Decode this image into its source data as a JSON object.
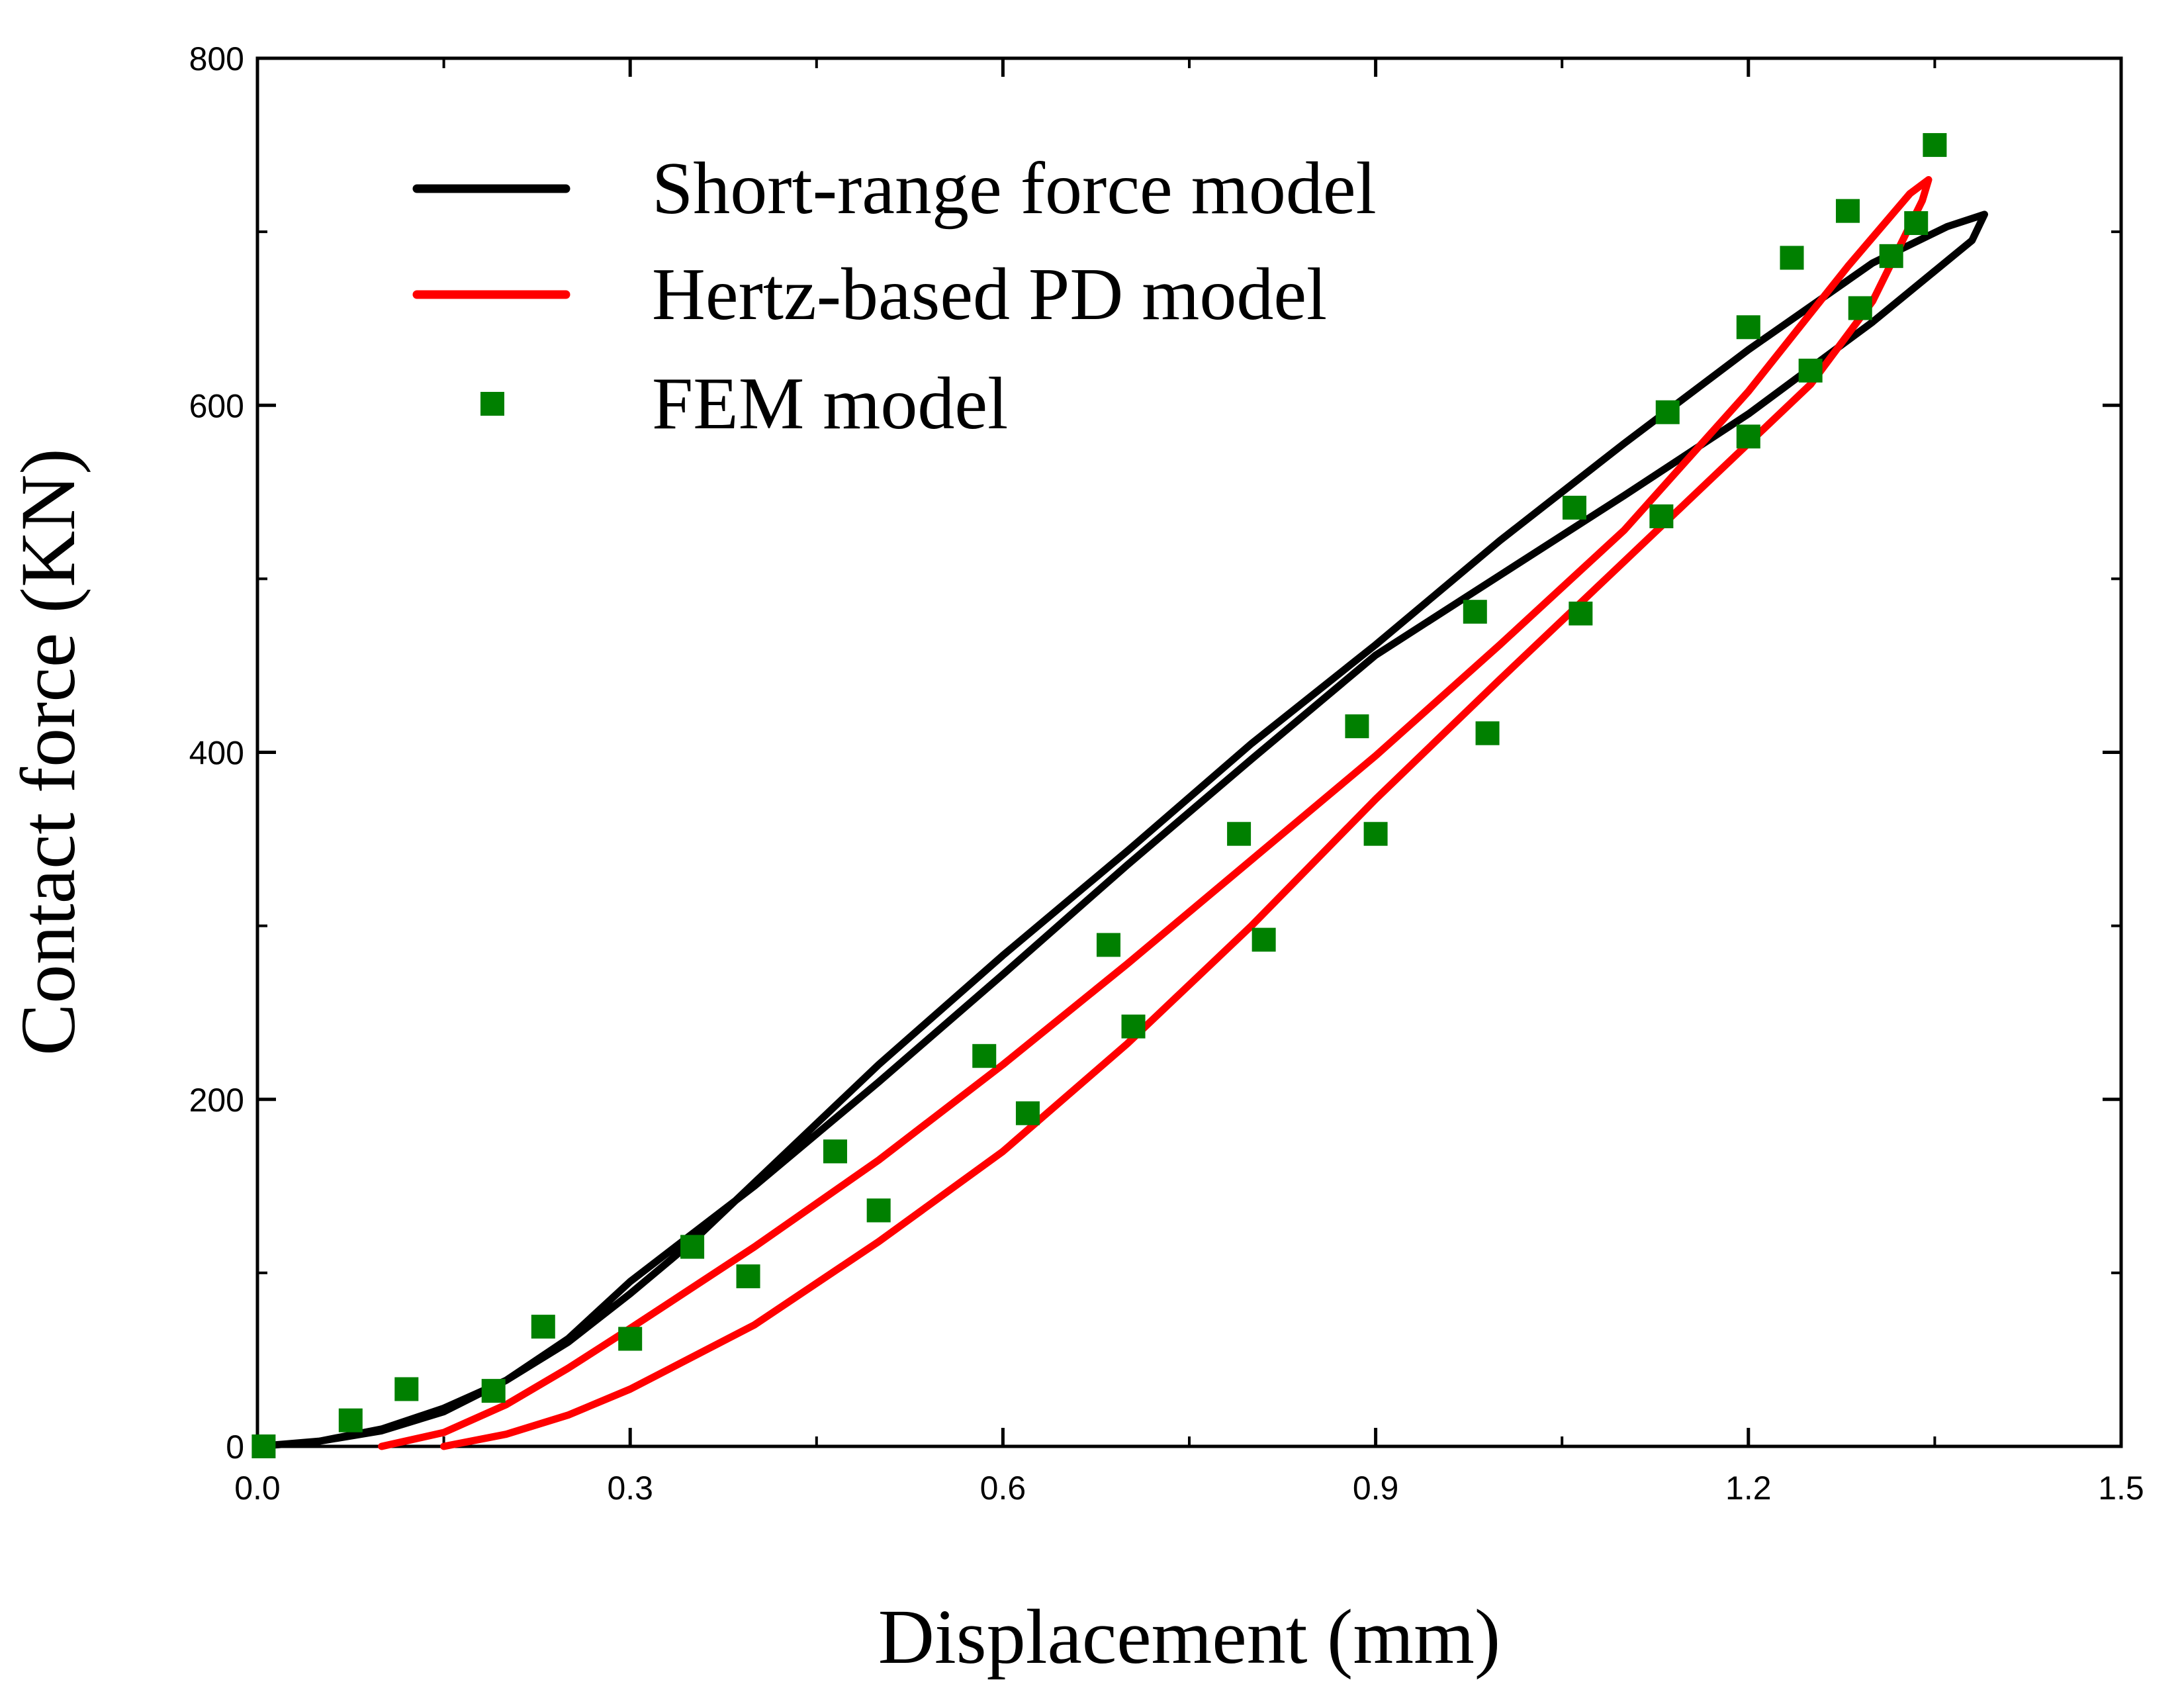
{
  "chart_data": {
    "type": "line",
    "title": "",
    "xlabel": "Displacement (mm)",
    "ylabel": "Contact force (KN)",
    "xlim": [
      0,
      1.5
    ],
    "ylim": [
      0,
      800
    ],
    "x_ticks": [
      0.0,
      0.3,
      0.6,
      0.9,
      1.2,
      1.5
    ],
    "x_tick_labels": [
      "0.0",
      "0.3",
      "0.6",
      "0.9",
      "1.2",
      "1.5"
    ],
    "y_ticks": [
      0,
      200,
      400,
      600,
      800
    ],
    "y_tick_labels": [
      "0",
      "200",
      "400",
      "600",
      "800"
    ],
    "grid": false,
    "legend_position": "top-left",
    "series": [
      {
        "name": "Short-range force model",
        "kind": "line",
        "color": "#000000",
        "x": [
          0.0,
          0.05,
          0.1,
          0.15,
          0.2,
          0.25,
          0.3,
          0.35,
          0.4,
          0.5,
          0.6,
          0.7,
          0.8,
          0.9,
          1.0,
          1.1,
          1.2,
          1.3,
          1.36,
          1.39,
          1.38,
          1.3,
          1.2,
          1.1,
          1.0,
          0.9,
          0.8,
          0.7,
          0.6,
          0.5,
          0.4,
          0.3,
          0.25,
          0.2,
          0.15,
          0.1,
          0.05,
          0.0
        ],
        "y": [
          0,
          3,
          10,
          22,
          38,
          60,
          88,
          118,
          152,
          220,
          283,
          343,
          405,
          462,
          522,
          578,
          632,
          682,
          703,
          710,
          695,
          648,
          595,
          548,
          502,
          456,
          396,
          335,
          272,
          210,
          150,
          95,
          62,
          38,
          20,
          9,
          3,
          0
        ]
      },
      {
        "name": "Hertz-based PD model",
        "kind": "line",
        "color": "#ff0000",
        "x": [
          0.1,
          0.15,
          0.2,
          0.25,
          0.3,
          0.4,
          0.5,
          0.6,
          0.7,
          0.8,
          0.9,
          1.0,
          1.1,
          1.2,
          1.28,
          1.33,
          1.345,
          1.34,
          1.3,
          1.25,
          1.2,
          1.1,
          1.0,
          0.9,
          0.8,
          0.7,
          0.6,
          0.5,
          0.4,
          0.3,
          0.25,
          0.2,
          0.15
        ],
        "y": [
          0,
          8,
          24,
          45,
          68,
          115,
          165,
          220,
          278,
          338,
          398,
          462,
          528,
          608,
          680,
          722,
          730,
          718,
          660,
          612,
          578,
          510,
          442,
          373,
          300,
          232,
          170,
          118,
          70,
          33,
          18,
          7,
          0
        ]
      },
      {
        "name": "FEM model",
        "kind": "scatter",
        "color": "#008000",
        "x": [
          0.005,
          0.075,
          0.12,
          0.19,
          0.23,
          0.3,
          0.35,
          0.395,
          0.465,
          0.5,
          0.585,
          0.62,
          0.685,
          0.705,
          0.79,
          0.81,
          0.885,
          0.9,
          0.98,
          0.99,
          1.06,
          1.065,
          1.13,
          1.135,
          1.2,
          1.2,
          1.235,
          1.25,
          1.28,
          1.29,
          1.315,
          1.335,
          1.35
        ],
        "y": [
          0,
          15,
          33,
          32,
          69,
          62,
          115,
          98,
          170,
          136,
          225,
          192,
          289,
          242,
          353,
          292,
          415,
          353,
          481,
          411,
          541,
          480,
          536,
          596,
          582,
          645,
          685,
          620,
          712,
          656,
          686,
          705,
          750
        ]
      }
    ]
  }
}
